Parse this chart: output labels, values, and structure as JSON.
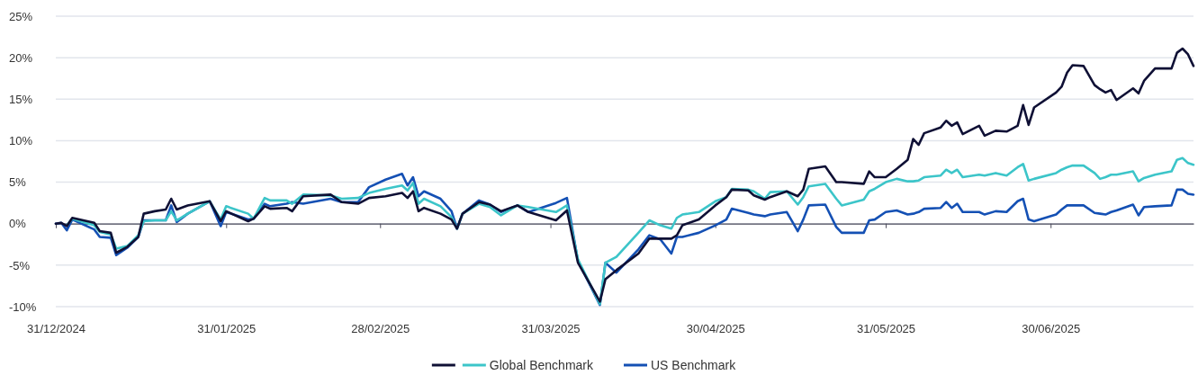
{
  "chart_data": {
    "type": "line",
    "x": [
      "2024-12-31",
      "2025-01-01",
      "2025-01-02",
      "2025-01-03",
      "2025-01-07",
      "2025-01-08",
      "2025-01-10",
      "2025-01-11",
      "2025-01-13",
      "2025-01-15",
      "2025-01-16",
      "2025-01-18",
      "2025-01-20",
      "2025-01-21",
      "2025-01-22",
      "2025-01-24",
      "2025-01-28",
      "2025-01-30",
      "2025-01-31",
      "2025-02-04",
      "2025-02-05",
      "2025-02-07",
      "2025-02-08",
      "2025-02-11",
      "2025-02-12",
      "2025-02-14",
      "2025-02-19",
      "2025-02-21",
      "2025-02-24",
      "2025-02-26",
      "2025-03-01",
      "2025-03-04",
      "2025-03-05",
      "2025-03-06",
      "2025-03-07",
      "2025-03-08",
      "2025-03-11",
      "2025-03-13",
      "2025-03-14",
      "2025-03-15",
      "2025-03-18",
      "2025-03-20",
      "2025-03-22",
      "2025-03-25",
      "2025-03-27",
      "2025-04-01",
      "2025-04-03",
      "2025-04-05",
      "2025-04-09",
      "2025-04-10",
      "2025-04-12",
      "2025-04-16",
      "2025-04-18",
      "2025-04-20",
      "2025-04-22",
      "2025-04-23",
      "2025-04-24",
      "2025-04-27",
      "2025-04-30",
      "2025-05-02",
      "2025-05-03",
      "2025-05-06",
      "2025-05-07",
      "2025-05-09",
      "2025-05-10",
      "2025-05-13",
      "2025-05-15",
      "2025-05-16",
      "2025-05-17",
      "2025-05-20",
      "2025-05-22",
      "2025-05-23",
      "2025-05-27",
      "2025-05-28",
      "2025-05-29",
      "2025-05-31",
      "2025-06-02",
      "2025-06-04",
      "2025-06-05",
      "2025-06-06",
      "2025-06-07",
      "2025-06-10",
      "2025-06-11",
      "2025-06-12",
      "2025-06-13",
      "2025-06-14",
      "2025-06-17",
      "2025-06-18",
      "2025-06-20",
      "2025-06-22",
      "2025-06-24",
      "2025-06-25",
      "2025-06-26",
      "2025-06-27",
      "2025-07-01",
      "2025-07-02",
      "2025-07-03",
      "2025-07-04",
      "2025-07-06",
      "2025-07-08",
      "2025-07-09",
      "2025-07-10",
      "2025-07-11",
      "2025-07-12",
      "2025-07-15",
      "2025-07-16",
      "2025-07-17",
      "2025-07-19",
      "2025-07-22",
      "2025-07-23",
      "2025-07-24",
      "2025-07-25",
      "2025-07-26"
    ],
    "series": [
      {
        "color": "#0f1035",
        "values": [
          0,
          0.1,
          -0.3,
          0.7,
          0.1,
          -0.9,
          -1.1,
          -3.5,
          -2.8,
          -1.6,
          1.2,
          1.5,
          1.7,
          3.0,
          1.7,
          2.2,
          2.7,
          0.3,
          1.5,
          0.3,
          0.6,
          2.1,
          1.8,
          1.9,
          1.5,
          3.3,
          3.5,
          2.6,
          2.4,
          3.1,
          3.3,
          3.7,
          3.1,
          3.9,
          1.5,
          1.9,
          1.2,
          0.5,
          -0.6,
          1.2,
          2.6,
          2.3,
          1.5,
          2.2,
          1.4,
          0.4,
          1.6,
          -4.7,
          -9.4,
          -6.7,
          -5.6,
          -3.6,
          -1.8,
          -1.8,
          -1.8,
          -1.4,
          -0.2,
          0.5,
          2.2,
          3.2,
          4.1,
          4.0,
          3.4,
          2.9,
          3.2,
          3.9,
          3.3,
          4.1,
          6.6,
          6.9,
          5.0,
          5.0,
          4.8,
          6.3,
          5.6,
          5.6,
          6.6,
          7.7,
          10.2,
          9.5,
          10.9,
          11.6,
          12.4,
          11.8,
          12.2,
          10.8,
          11.8,
          10.6,
          11.2,
          11.1,
          11.8,
          14.3,
          11.9,
          14.0,
          15.8,
          16.5,
          18.2,
          19.1,
          19.0,
          16.7,
          16.2,
          15.8,
          16.1,
          14.9,
          16.3,
          15.7,
          17.2,
          18.7,
          18.7,
          20.6,
          21.1,
          20.4,
          19.0
        ]
      },
      {
        "name": "Global Benchmark",
        "color": "#3cc5c9",
        "values": [
          null,
          null,
          -0.2,
          0.6,
          -0.2,
          -1.0,
          -1.3,
          -3.0,
          -2.7,
          -1.4,
          0.3,
          0.4,
          0.4,
          1.5,
          0.4,
          1.2,
          2.7,
          0.5,
          2.1,
          1.2,
          0.6,
          3.1,
          2.8,
          2.8,
          2.4,
          3.5,
          3.4,
          3.0,
          3.1,
          3.7,
          4.2,
          4.6,
          4.0,
          4.9,
          2.4,
          3.0,
          2.1,
          0.8,
          -0.6,
          1.2,
          2.4,
          2.0,
          1.0,
          2.2,
          2.0,
          1.4,
          2.2,
          -4.3,
          -9.7,
          -4.7,
          -4.0,
          -1.1,
          0.4,
          -0.2,
          -0.6,
          0.7,
          1.1,
          1.4,
          2.7,
          3.2,
          4.2,
          4.1,
          3.9,
          3.0,
          3.8,
          3.9,
          2.3,
          3.2,
          4.5,
          4.8,
          3.0,
          2.2,
          2.9,
          3.9,
          4.2,
          5.0,
          5.4,
          5.1,
          5.1,
          5.2,
          5.6,
          5.8,
          6.5,
          6.1,
          6.5,
          5.6,
          5.9,
          5.8,
          6.1,
          5.8,
          6.8,
          7.2,
          5.2,
          5.4,
          6.1,
          6.5,
          6.8,
          7.0,
          7.0,
          6.1,
          5.4,
          5.6,
          5.9,
          5.9,
          6.3,
          5.1,
          5.5,
          5.9,
          6.3,
          7.7,
          7.9,
          7.3,
          7.1
        ]
      },
      {
        "name": "US Benchmark",
        "color": "#1450b4",
        "values": [
          0,
          0.1,
          -0.8,
          0.5,
          -0.7,
          -1.6,
          -1.7,
          -3.8,
          -2.9,
          -1.6,
          0.4,
          0.4,
          0.4,
          2.2,
          0.2,
          1.2,
          2.7,
          -0.3,
          1.4,
          0.5,
          0.6,
          2.4,
          2.1,
          2.4,
          2.6,
          2.4,
          3.0,
          2.6,
          2.6,
          4.4,
          5.3,
          6.0,
          4.6,
          5.6,
          3.3,
          3.9,
          3.0,
          1.5,
          -0.6,
          1.2,
          2.8,
          2.3,
          1.4,
          2.2,
          1.4,
          2.5,
          3.1,
          -4.5,
          -9.8,
          -4.7,
          -5.9,
          -3.1,
          -1.4,
          -1.9,
          -3.6,
          -1.6,
          -1.6,
          -1.1,
          -0.2,
          0.5,
          1.8,
          1.3,
          1.1,
          0.9,
          1.1,
          1.4,
          -0.9,
          0.5,
          2.2,
          2.3,
          -0.4,
          -1.1,
          -1.1,
          0.4,
          0.5,
          1.4,
          1.6,
          1.1,
          1.2,
          1.4,
          1.8,
          1.9,
          2.6,
          1.9,
          2.4,
          1.4,
          1.4,
          1.1,
          1.5,
          1.4,
          2.7,
          3.0,
          0.5,
          0.3,
          1.1,
          1.7,
          2.2,
          2.2,
          2.2,
          1.3,
          1.2,
          1.1,
          1.4,
          1.6,
          2.3,
          1.0,
          2.0,
          2.1,
          2.2,
          4.1,
          4.1,
          3.6,
          3.5
        ]
      }
    ],
    "xlim": [
      "2024-12-31",
      "2025-07-26"
    ],
    "xticks": [
      {
        "value": "2024-12-31",
        "label": "31/12/2024"
      },
      {
        "value": "2025-01-31",
        "label": "31/01/2025"
      },
      {
        "value": "2025-02-28",
        "label": "28/02/2025"
      },
      {
        "value": "2025-03-31",
        "label": "31/03/2025"
      },
      {
        "value": "2025-04-30",
        "label": "30/04/2025"
      },
      {
        "value": "2025-05-31",
        "label": "31/05/2025"
      },
      {
        "value": "2025-06-30",
        "label": "30/06/2025"
      }
    ],
    "ylim": [
      -10,
      25
    ],
    "yticks": [
      {
        "value": -10,
        "label": "-10%"
      },
      {
        "value": -5,
        "label": "-5%"
      },
      {
        "value": 0,
        "label": "0%"
      },
      {
        "value": 5,
        "label": "5%"
      },
      {
        "value": 10,
        "label": "10%"
      },
      {
        "value": 15,
        "label": "15%"
      },
      {
        "value": 20,
        "label": "20%"
      },
      {
        "value": 25,
        "label": "25%"
      }
    ],
    "grid": "y",
    "legend": "bottom"
  }
}
